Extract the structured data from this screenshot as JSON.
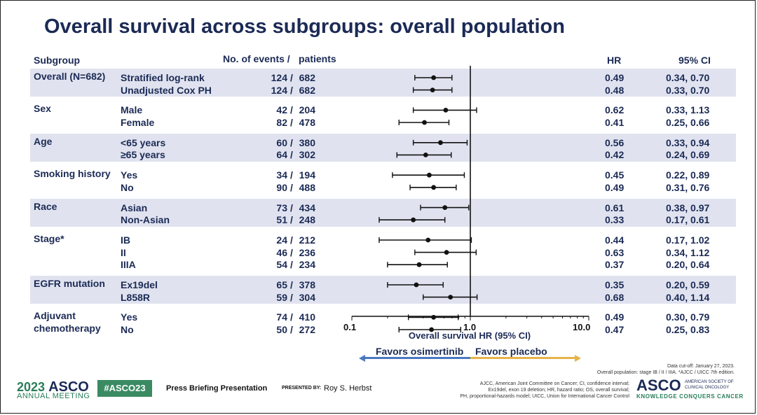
{
  "title": "Overall survival across subgroups: overall population",
  "headers": {
    "subgroup": "Subgroup",
    "events": "No. of events /",
    "patients": "patients",
    "hr": "HR",
    "ci": "95% CI"
  },
  "chart_data": {
    "type": "forest",
    "xlabel": "Overall survival HR (95% CI)",
    "xscale": "log",
    "xlim": [
      0.1,
      10.0
    ],
    "xticks": [
      "0.1",
      "1.0",
      "10.0"
    ],
    "reference_line": 1.0,
    "favors_left": "Favors osimertinib",
    "favors_right": "Favors placebo",
    "colors": {
      "favors_left": "#4a78c2",
      "favors_right": "#e6b44a",
      "band": "#e0e3ef",
      "text": "#1b2a55"
    },
    "groups": [
      {
        "name": "Overall (N=682)",
        "shaded": true,
        "rows": [
          {
            "label": "Stratified log-rank",
            "events": "124",
            "patients": "682",
            "hr": 0.49,
            "lo": 0.34,
            "hi": 0.7,
            "hr_text": "0.49",
            "ci_text": "0.34, 0.70"
          },
          {
            "label": "Unadjusted Cox PH",
            "events": "124",
            "patients": "682",
            "hr": 0.48,
            "lo": 0.33,
            "hi": 0.7,
            "hr_text": "0.48",
            "ci_text": "0.33, 0.70"
          }
        ]
      },
      {
        "name": "Sex",
        "shaded": false,
        "rows": [
          {
            "label": "Male",
            "events": "42",
            "patients": "204",
            "hr": 0.62,
            "lo": 0.33,
            "hi": 1.13,
            "hr_text": "0.62",
            "ci_text": "0.33, 1.13"
          },
          {
            "label": "Female",
            "events": "82",
            "patients": "478",
            "hr": 0.41,
            "lo": 0.25,
            "hi": 0.66,
            "hr_text": "0.41",
            "ci_text": "0.25, 0.66"
          }
        ]
      },
      {
        "name": "Age",
        "shaded": true,
        "rows": [
          {
            "label": "<65 years",
            "events": "60",
            "patients": "380",
            "hr": 0.56,
            "lo": 0.33,
            "hi": 0.94,
            "hr_text": "0.56",
            "ci_text": "0.33, 0.94"
          },
          {
            "label": "≥65 years",
            "events": "64",
            "patients": "302",
            "hr": 0.42,
            "lo": 0.24,
            "hi": 0.69,
            "hr_text": "0.42",
            "ci_text": "0.24, 0.69"
          }
        ]
      },
      {
        "name": "Smoking history",
        "shaded": false,
        "rows": [
          {
            "label": "Yes",
            "events": "34",
            "patients": "194",
            "hr": 0.45,
            "lo": 0.22,
            "hi": 0.89,
            "hr_text": "0.45",
            "ci_text": "0.22, 0.89"
          },
          {
            "label": "No",
            "events": "90",
            "patients": "488",
            "hr": 0.49,
            "lo": 0.31,
            "hi": 0.76,
            "hr_text": "0.49",
            "ci_text": "0.31, 0.76"
          }
        ]
      },
      {
        "name": "Race",
        "shaded": true,
        "rows": [
          {
            "label": "Asian",
            "events": "73",
            "patients": "434",
            "hr": 0.61,
            "lo": 0.38,
            "hi": 0.97,
            "hr_text": "0.61",
            "ci_text": "0.38, 0.97"
          },
          {
            "label": "Non-Asian",
            "events": "51",
            "patients": "248",
            "hr": 0.33,
            "lo": 0.17,
            "hi": 0.61,
            "hr_text": "0.33",
            "ci_text": "0.17, 0.61"
          }
        ]
      },
      {
        "name": "Stage*",
        "shaded": false,
        "rows": [
          {
            "label": "IB",
            "events": "24",
            "patients": "212",
            "hr": 0.44,
            "lo": 0.17,
            "hi": 1.02,
            "hr_text": "0.44",
            "ci_text": "0.17, 1.02"
          },
          {
            "label": "II",
            "events": "46",
            "patients": "236",
            "hr": 0.63,
            "lo": 0.34,
            "hi": 1.12,
            "hr_text": "0.63",
            "ci_text": "0.34, 1.12"
          },
          {
            "label": "IIIA",
            "events": "54",
            "patients": "234",
            "hr": 0.37,
            "lo": 0.2,
            "hi": 0.64,
            "hr_text": "0.37",
            "ci_text": "0.20, 0.64"
          }
        ]
      },
      {
        "name": "EGFR mutation",
        "shaded": true,
        "rows": [
          {
            "label": "Ex19del",
            "events": "65",
            "patients": "378",
            "hr": 0.35,
            "lo": 0.2,
            "hi": 0.59,
            "hr_text": "0.35",
            "ci_text": "0.20, 0.59"
          },
          {
            "label": "L858R",
            "events": "59",
            "patients": "304",
            "hr": 0.68,
            "lo": 0.4,
            "hi": 1.14,
            "hr_text": "0.68",
            "ci_text": "0.40, 1.14"
          }
        ]
      },
      {
        "name": "Adjuvant\nchemotherapy",
        "shaded": false,
        "rows": [
          {
            "label": "Yes",
            "events": "74",
            "patients": "410",
            "hr": 0.49,
            "lo": 0.3,
            "hi": 0.79,
            "hr_text": "0.49",
            "ci_text": "0.30, 0.79"
          },
          {
            "label": "No",
            "events": "50",
            "patients": "272",
            "hr": 0.47,
            "lo": 0.25,
            "hi": 0.83,
            "hr_text": "0.47",
            "ci_text": "0.25, 0.83"
          }
        ]
      }
    ]
  },
  "footer": {
    "asco_year": "2023",
    "asco_name": "ASCO",
    "asco_meeting": "ANNUAL MEETING",
    "hashtag": "#ASCO23",
    "press": "Press Briefing Presentation",
    "presented_by": "PRESENTED BY:",
    "presenter": "Roy S. Herbst",
    "data_cutoff_1": "Data cut-off: January 27, 2023.",
    "data_cutoff_2": "Overall population: stage IB / II / IIIA. *AJCC / UICC 7th edition.",
    "abbrev_1": "AJCC, American Joint Committee on Cancer; CI, confidence interval;",
    "abbrev_2": "Ex19del, exon 19 deletion; HR, hazard ratio; OS, overall survival;",
    "abbrev_3": "PH, proportional-hazards model; UICC, Union for International Cancer Control",
    "asco_right": "ASCO",
    "asco_right_sub1": "AMERICAN SOCIETY OF",
    "asco_right_sub2": "CLINICAL ONCOLOGY",
    "asco_tagline": "KNOWLEDGE CONQUERS CANCER"
  }
}
